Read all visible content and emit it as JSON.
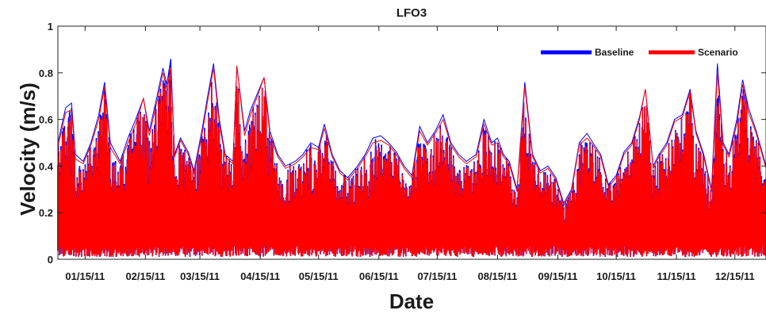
{
  "chart_data": {
    "type": "line",
    "title": "LFO3",
    "xlabel": "Date",
    "ylabel": "Velocity (m/s)",
    "ylim": [
      0,
      1
    ],
    "xlim": [
      "2011-01-01",
      "2011-12-31"
    ],
    "y_ticks": [
      "0",
      "0.2",
      "0.4",
      "0.6",
      "0.8",
      "1"
    ],
    "x_ticks": [
      "01/15/11",
      "02/15/11",
      "03/15/11",
      "04/15/11",
      "05/15/11",
      "06/15/11",
      "07/15/11",
      "08/15/11",
      "09/15/11",
      "10/15/11",
      "11/15/11",
      "12/15/11"
    ],
    "x_tick_dates": [
      "2011-01-15",
      "2011-02-15",
      "2011-03-15",
      "2011-04-15",
      "2011-05-15",
      "2011-06-15",
      "2011-07-15",
      "2011-08-15",
      "2011-09-15",
      "2011-10-15",
      "2011-11-15",
      "2011-12-15"
    ],
    "legend_position": "top-right",
    "grid": false,
    "series": [
      {
        "name": "Baseline",
        "color": "#0000ff",
        "envelope_max": [
          [
            "2011-01-01",
            0.5
          ],
          [
            "2011-01-05",
            0.65
          ],
          [
            "2011-01-08",
            0.67
          ],
          [
            "2011-01-10",
            0.45
          ],
          [
            "2011-01-14",
            0.42
          ],
          [
            "2011-01-18",
            0.5
          ],
          [
            "2011-01-22",
            0.62
          ],
          [
            "2011-01-25",
            0.76
          ],
          [
            "2011-01-28",
            0.5
          ],
          [
            "2011-02-02",
            0.42
          ],
          [
            "2011-02-06",
            0.52
          ],
          [
            "2011-02-10",
            0.6
          ],
          [
            "2011-02-14",
            0.69
          ],
          [
            "2011-02-17",
            0.55
          ],
          [
            "2011-02-21",
            0.7
          ],
          [
            "2011-02-24",
            0.82
          ],
          [
            "2011-02-26",
            0.75
          ],
          [
            "2011-02-28",
            0.86
          ],
          [
            "2011-03-02",
            0.45
          ],
          [
            "2011-03-05",
            0.52
          ],
          [
            "2011-03-09",
            0.46
          ],
          [
            "2011-03-12",
            0.38
          ],
          [
            "2011-03-16",
            0.55
          ],
          [
            "2011-03-19",
            0.7
          ],
          [
            "2011-03-22",
            0.84
          ],
          [
            "2011-03-25",
            0.6
          ],
          [
            "2011-03-28",
            0.45
          ],
          [
            "2011-04-01",
            0.42
          ],
          [
            "2011-04-03",
            0.83
          ],
          [
            "2011-04-07",
            0.55
          ],
          [
            "2011-04-10",
            0.64
          ],
          [
            "2011-04-14",
            0.72
          ],
          [
            "2011-04-17",
            0.78
          ],
          [
            "2011-04-20",
            0.55
          ],
          [
            "2011-04-24",
            0.45
          ],
          [
            "2011-04-28",
            0.4
          ],
          [
            "2011-05-03",
            0.42
          ],
          [
            "2011-05-07",
            0.45
          ],
          [
            "2011-05-11",
            0.5
          ],
          [
            "2011-05-15",
            0.48
          ],
          [
            "2011-05-18",
            0.58
          ],
          [
            "2011-05-22",
            0.45
          ],
          [
            "2011-05-26",
            0.38
          ],
          [
            "2011-05-30",
            0.35
          ],
          [
            "2011-06-04",
            0.4
          ],
          [
            "2011-06-08",
            0.45
          ],
          [
            "2011-06-12",
            0.52
          ],
          [
            "2011-06-16",
            0.53
          ],
          [
            "2011-06-20",
            0.5
          ],
          [
            "2011-06-24",
            0.46
          ],
          [
            "2011-06-28",
            0.4
          ],
          [
            "2011-07-02",
            0.36
          ],
          [
            "2011-07-06",
            0.57
          ],
          [
            "2011-07-10",
            0.5
          ],
          [
            "2011-07-14",
            0.55
          ],
          [
            "2011-07-18",
            0.62
          ],
          [
            "2011-07-22",
            0.5
          ],
          [
            "2011-07-26",
            0.45
          ],
          [
            "2011-07-30",
            0.42
          ],
          [
            "2011-08-04",
            0.45
          ],
          [
            "2011-08-08",
            0.6
          ],
          [
            "2011-08-12",
            0.5
          ],
          [
            "2011-08-15",
            0.52
          ],
          [
            "2011-08-18",
            0.45
          ],
          [
            "2011-08-21",
            0.42
          ],
          [
            "2011-08-25",
            0.3
          ],
          [
            "2011-08-29",
            0.76
          ],
          [
            "2011-09-02",
            0.45
          ],
          [
            "2011-09-06",
            0.38
          ],
          [
            "2011-09-10",
            0.4
          ],
          [
            "2011-09-14",
            0.35
          ],
          [
            "2011-09-18",
            0.24
          ],
          [
            "2011-09-22",
            0.3
          ],
          [
            "2011-09-26",
            0.5
          ],
          [
            "2011-09-30",
            0.54
          ],
          [
            "2011-10-03",
            0.5
          ],
          [
            "2011-10-07",
            0.45
          ],
          [
            "2011-10-11",
            0.32
          ],
          [
            "2011-10-15",
            0.36
          ],
          [
            "2011-10-19",
            0.46
          ],
          [
            "2011-10-23",
            0.5
          ],
          [
            "2011-10-27",
            0.61
          ],
          [
            "2011-10-30",
            0.73
          ],
          [
            "2011-11-03",
            0.4
          ],
          [
            "2011-11-06",
            0.45
          ],
          [
            "2011-11-10",
            0.5
          ],
          [
            "2011-11-14",
            0.6
          ],
          [
            "2011-11-18",
            0.62
          ],
          [
            "2011-11-22",
            0.73
          ],
          [
            "2011-11-25",
            0.55
          ],
          [
            "2011-11-29",
            0.45
          ],
          [
            "2011-12-03",
            0.3
          ],
          [
            "2011-12-06",
            0.84
          ],
          [
            "2011-12-09",
            0.5
          ],
          [
            "2011-12-12",
            0.45
          ],
          [
            "2011-12-16",
            0.6
          ],
          [
            "2011-12-19",
            0.77
          ],
          [
            "2011-12-22",
            0.65
          ],
          [
            "2011-12-26",
            0.55
          ],
          [
            "2011-12-31",
            0.4
          ]
        ]
      },
      {
        "name": "Scenario",
        "color": "#ff0000",
        "envelope_max": [
          [
            "2011-01-01",
            0.48
          ],
          [
            "2011-01-05",
            0.63
          ],
          [
            "2011-01-08",
            0.64
          ],
          [
            "2011-01-10",
            0.43
          ],
          [
            "2011-01-14",
            0.41
          ],
          [
            "2011-01-18",
            0.49
          ],
          [
            "2011-01-22",
            0.6
          ],
          [
            "2011-01-25",
            0.74
          ],
          [
            "2011-01-28",
            0.48
          ],
          [
            "2011-02-02",
            0.41
          ],
          [
            "2011-02-06",
            0.5
          ],
          [
            "2011-02-10",
            0.58
          ],
          [
            "2011-02-14",
            0.69
          ],
          [
            "2011-02-17",
            0.53
          ],
          [
            "2011-02-21",
            0.68
          ],
          [
            "2011-02-24",
            0.8
          ],
          [
            "2011-02-26",
            0.73
          ],
          [
            "2011-02-28",
            0.82
          ],
          [
            "2011-03-02",
            0.44
          ],
          [
            "2011-03-05",
            0.51
          ],
          [
            "2011-03-09",
            0.45
          ],
          [
            "2011-03-12",
            0.37
          ],
          [
            "2011-03-16",
            0.53
          ],
          [
            "2011-03-19",
            0.68
          ],
          [
            "2011-03-22",
            0.82
          ],
          [
            "2011-03-25",
            0.58
          ],
          [
            "2011-03-28",
            0.44
          ],
          [
            "2011-04-01",
            0.41
          ],
          [
            "2011-04-03",
            0.83
          ],
          [
            "2011-04-07",
            0.53
          ],
          [
            "2011-04-10",
            0.62
          ],
          [
            "2011-04-14",
            0.71
          ],
          [
            "2011-04-17",
            0.78
          ],
          [
            "2011-04-20",
            0.53
          ],
          [
            "2011-04-24",
            0.44
          ],
          [
            "2011-04-28",
            0.39
          ],
          [
            "2011-05-03",
            0.41
          ],
          [
            "2011-05-07",
            0.44
          ],
          [
            "2011-05-11",
            0.48
          ],
          [
            "2011-05-15",
            0.47
          ],
          [
            "2011-05-18",
            0.56
          ],
          [
            "2011-05-22",
            0.44
          ],
          [
            "2011-05-26",
            0.37
          ],
          [
            "2011-05-30",
            0.34
          ],
          [
            "2011-06-04",
            0.39
          ],
          [
            "2011-06-08",
            0.44
          ],
          [
            "2011-06-12",
            0.5
          ],
          [
            "2011-06-16",
            0.51
          ],
          [
            "2011-06-20",
            0.49
          ],
          [
            "2011-06-24",
            0.45
          ],
          [
            "2011-06-28",
            0.39
          ],
          [
            "2011-07-02",
            0.35
          ],
          [
            "2011-07-06",
            0.55
          ],
          [
            "2011-07-10",
            0.49
          ],
          [
            "2011-07-14",
            0.54
          ],
          [
            "2011-07-18",
            0.6
          ],
          [
            "2011-07-22",
            0.49
          ],
          [
            "2011-07-26",
            0.44
          ],
          [
            "2011-07-30",
            0.41
          ],
          [
            "2011-08-04",
            0.44
          ],
          [
            "2011-08-08",
            0.58
          ],
          [
            "2011-08-12",
            0.49
          ],
          [
            "2011-08-15",
            0.5
          ],
          [
            "2011-08-18",
            0.44
          ],
          [
            "2011-08-21",
            0.41
          ],
          [
            "2011-08-25",
            0.29
          ],
          [
            "2011-08-29",
            0.74
          ],
          [
            "2011-09-02",
            0.44
          ],
          [
            "2011-09-06",
            0.37
          ],
          [
            "2011-09-10",
            0.39
          ],
          [
            "2011-09-14",
            0.34
          ],
          [
            "2011-09-18",
            0.23
          ],
          [
            "2011-09-22",
            0.29
          ],
          [
            "2011-09-26",
            0.49
          ],
          [
            "2011-09-30",
            0.52
          ],
          [
            "2011-10-03",
            0.49
          ],
          [
            "2011-10-07",
            0.44
          ],
          [
            "2011-10-11",
            0.31
          ],
          [
            "2011-10-15",
            0.35
          ],
          [
            "2011-10-19",
            0.45
          ],
          [
            "2011-10-23",
            0.49
          ],
          [
            "2011-10-27",
            0.6
          ],
          [
            "2011-10-30",
            0.73
          ],
          [
            "2011-11-03",
            0.39
          ],
          [
            "2011-11-06",
            0.44
          ],
          [
            "2011-11-10",
            0.49
          ],
          [
            "2011-11-14",
            0.59
          ],
          [
            "2011-11-18",
            0.61
          ],
          [
            "2011-11-22",
            0.72
          ],
          [
            "2011-11-25",
            0.54
          ],
          [
            "2011-11-29",
            0.44
          ],
          [
            "2011-12-03",
            0.29
          ],
          [
            "2011-12-06",
            0.8
          ],
          [
            "2011-12-09",
            0.49
          ],
          [
            "2011-12-12",
            0.44
          ],
          [
            "2011-12-16",
            0.58
          ],
          [
            "2011-12-19",
            0.75
          ],
          [
            "2011-12-22",
            0.63
          ],
          [
            "2011-12-26",
            0.54
          ],
          [
            "2011-12-31",
            0.39
          ]
        ]
      }
    ]
  }
}
